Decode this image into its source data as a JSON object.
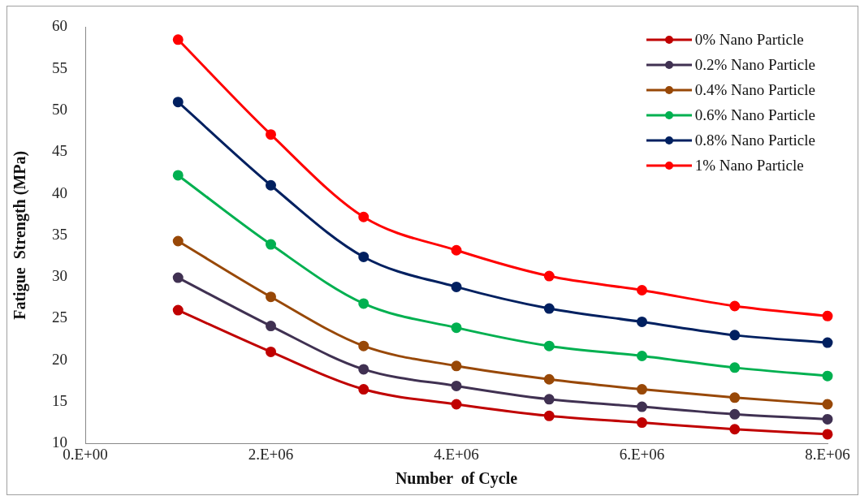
{
  "chart_data": {
    "type": "line",
    "xlabel": "Number  of Cycle",
    "ylabel": "Fatigue  Strength (MPa)",
    "categories": [
      "0.E+00",
      null,
      "2.E+06",
      null,
      "4.E+06",
      null,
      "6.E+06",
      null,
      "8.E+06"
    ],
    "series": [
      {
        "name": "0% Nano Particle",
        "color": "#c00000",
        "values": [
          null,
          26.0,
          21.0,
          16.5,
          14.7,
          13.3,
          12.5,
          11.7,
          11.1
        ]
      },
      {
        "name": "0.2% Nano Particle",
        "color": "#403152",
        "values": [
          null,
          29.9,
          24.1,
          18.9,
          16.9,
          15.3,
          14.4,
          13.5,
          12.9
        ]
      },
      {
        "name": "0.4% Nano Particle",
        "color": "#984807",
        "values": [
          null,
          34.3,
          27.6,
          21.7,
          19.3,
          17.7,
          16.5,
          15.5,
          14.7
        ]
      },
      {
        "name": "0.6% Nano Particle",
        "color": "#00b050",
        "values": [
          null,
          42.2,
          33.9,
          26.8,
          23.9,
          21.7,
          20.5,
          19.1,
          18.1
        ]
      },
      {
        "name": "0.8% Nano Particle",
        "color": "#002060",
        "values": [
          null,
          51.0,
          41.0,
          32.4,
          28.8,
          26.2,
          24.6,
          23.0,
          22.1
        ]
      },
      {
        "name": "1% Nano Particle",
        "color": "#ff0000",
        "values": [
          null,
          58.5,
          47.1,
          37.2,
          33.2,
          30.1,
          28.4,
          26.5,
          25.3
        ]
      }
    ],
    "ylim": [
      10,
      60
    ],
    "yticks": [
      10,
      15,
      20,
      25,
      30,
      35,
      40,
      45,
      50,
      55,
      60
    ],
    "grid": false,
    "legend": "top right",
    "marker": "circle",
    "line_style": "solid"
  }
}
